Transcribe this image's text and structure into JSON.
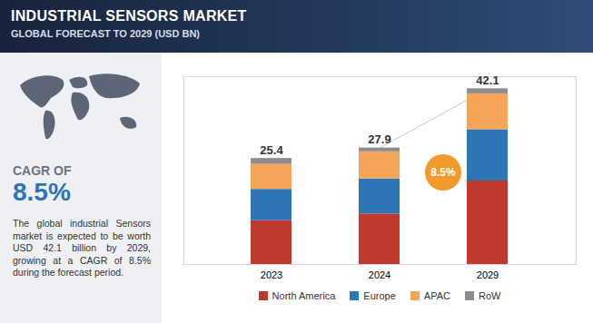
{
  "chart_data": {
    "type": "bar",
    "stacked": true,
    "title": "INDUSTRIAL SENSORS MARKET",
    "subtitle": "GLOBAL FORECAST TO 2029 (USD BN)",
    "categories": [
      "2023",
      "2024",
      "2029"
    ],
    "series": [
      {
        "name": "North America",
        "color": "#c0392f",
        "values": [
          10.5,
          12.1,
          20.0
        ]
      },
      {
        "name": "Europe",
        "color": "#2e75b6",
        "values": [
          7.5,
          8.4,
          12.3
        ]
      },
      {
        "name": "APAC",
        "color": "#f4a55a",
        "values": [
          6.0,
          6.5,
          8.6
        ]
      },
      {
        "name": "RoW",
        "color": "#8c8c8c",
        "values": [
          1.4,
          0.9,
          1.2
        ]
      }
    ],
    "totals": [
      25.4,
      27.9,
      42.1
    ],
    "annotation": "8.5%",
    "sidebar": {
      "heading": "CAGR OF",
      "cagr": "8.5%",
      "text": "The global industrial Sensors market is expected to be worth USD 42.1 billion by 2029, growing at a CAGR of 8.5% during the forecast period."
    },
    "ylim": [
      0,
      45
    ],
    "yticks": [],
    "tick_labels": "x",
    "legend": "bottom"
  }
}
